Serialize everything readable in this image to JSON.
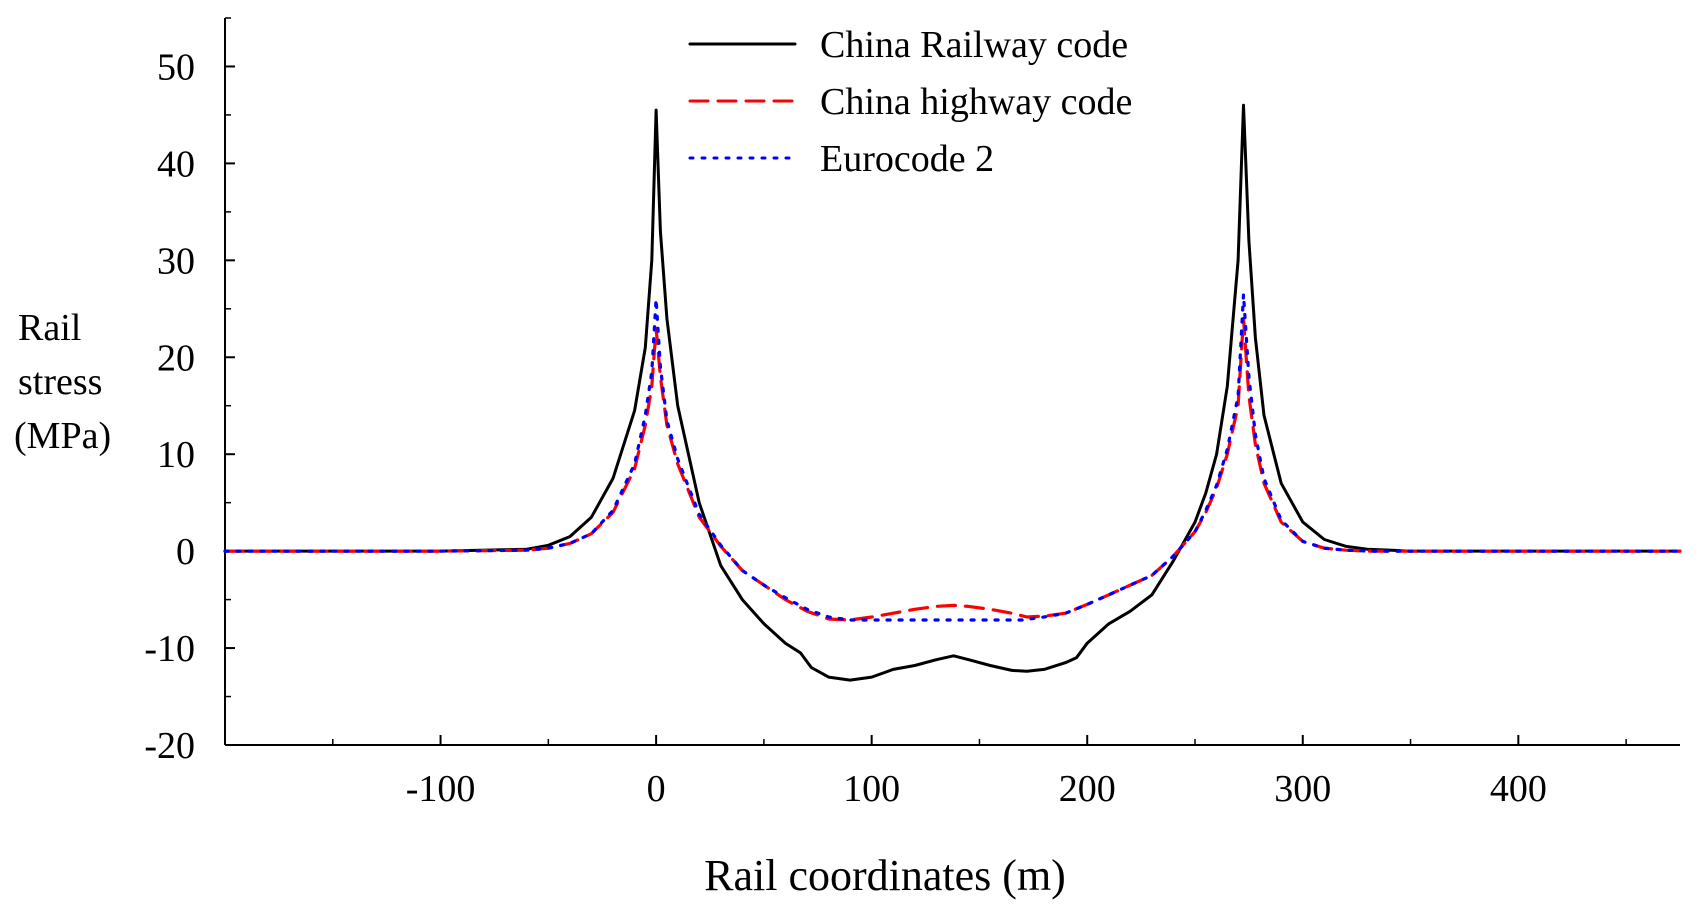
{
  "chart_data": {
    "type": "line",
    "title": "",
    "xlabel": "Rail coordinates (m)",
    "ylabel": [
      "Rail",
      "stress",
      "(MPa)"
    ],
    "xlim": [
      -200,
      475
    ],
    "ylim": [
      -20,
      55
    ],
    "x_ticks": [
      -100,
      0,
      100,
      200,
      300,
      400
    ],
    "x_tick_labels": [
      "-100",
      "0",
      "100",
      "200",
      "300",
      "400"
    ],
    "y_ticks": [
      -20,
      -10,
      0,
      10,
      20,
      30,
      40,
      50
    ],
    "y_tick_labels": [
      "-20",
      "-10",
      "0",
      "10",
      "20",
      "30",
      "40",
      "50"
    ],
    "legend_position": "top-center",
    "series": [
      {
        "name": "China Railway code",
        "color": "#000000",
        "style": "solid",
        "x": [
          -200,
          -100,
          -60,
          -50,
          -40,
          -30,
          -20,
          -10,
          -5,
          -2,
          0,
          2,
          5,
          10,
          20,
          30,
          40,
          50,
          60,
          67,
          72,
          80,
          90,
          100,
          110,
          120,
          130,
          138,
          145,
          155,
          165,
          172,
          180,
          190,
          195,
          200,
          205,
          210,
          220,
          230,
          240,
          250,
          255,
          260,
          265,
          270,
          272.5,
          275,
          278,
          282,
          290,
          300,
          310,
          320,
          330,
          350,
          400,
          475
        ],
        "y": [
          0,
          0,
          0.2,
          0.6,
          1.5,
          3.5,
          7.5,
          14.5,
          21,
          30,
          45.5,
          33,
          24,
          15,
          5,
          -1.5,
          -5,
          -7.5,
          -9.5,
          -10.5,
          -12,
          -13,
          -13.3,
          -13,
          -12.2,
          -11.8,
          -11.2,
          -10.8,
          -11.2,
          -11.8,
          -12.3,
          -12.4,
          -12.2,
          -11.5,
          -11,
          -9.5,
          -8.5,
          -7.5,
          -6.2,
          -4.5,
          -1,
          3,
          6,
          10,
          17,
          30,
          46,
          32,
          22,
          14,
          7,
          3,
          1.2,
          0.5,
          0.2,
          0,
          0,
          0
        ]
      },
      {
        "name": "China highway code",
        "color": "#ff0000",
        "style": "dashed",
        "x": [
          -200,
          -100,
          -60,
          -50,
          -40,
          -30,
          -20,
          -10,
          -5,
          -2,
          0,
          2,
          5,
          10,
          20,
          30,
          40,
          50,
          60,
          70,
          80,
          90,
          100,
          110,
          120,
          130,
          138,
          145,
          155,
          165,
          172,
          180,
          190,
          200,
          210,
          220,
          230,
          240,
          250,
          255,
          260,
          265,
          270,
          272.5,
          275,
          278,
          282,
          290,
          300,
          310,
          320,
          330,
          350,
          400,
          475
        ],
        "y": [
          0,
          0,
          0.1,
          0.3,
          0.8,
          1.8,
          4,
          8.5,
          13,
          17,
          23,
          18,
          13,
          9,
          3.5,
          0.5,
          -2,
          -3.5,
          -5,
          -6.2,
          -7,
          -7.1,
          -6.8,
          -6.4,
          -6,
          -5.7,
          -5.6,
          -5.7,
          -6,
          -6.4,
          -6.8,
          -6.7,
          -6.4,
          -5.5,
          -4.5,
          -3.5,
          -2.5,
          -0.5,
          2,
          4,
          6.5,
          10,
          15,
          24,
          16,
          11,
          7,
          3,
          1,
          0.3,
          0.1,
          0,
          0,
          0,
          0
        ]
      },
      {
        "name": "Eurocode 2",
        "color": "#0000ff",
        "style": "dotted",
        "x": [
          -200,
          -100,
          -60,
          -50,
          -40,
          -30,
          -20,
          -10,
          -5,
          -2,
          0,
          2,
          5,
          10,
          20,
          30,
          40,
          50,
          60,
          70,
          80,
          90,
          100,
          120,
          140,
          160,
          170,
          180,
          190,
          200,
          210,
          220,
          230,
          240,
          250,
          255,
          260,
          265,
          270,
          272.5,
          275,
          278,
          282,
          290,
          300,
          310,
          320,
          330,
          350,
          400,
          475
        ],
        "y": [
          0,
          0,
          0.1,
          0.3,
          0.8,
          1.8,
          4.2,
          9,
          14,
          18.5,
          26,
          19,
          13.5,
          9.5,
          3.8,
          0.6,
          -2,
          -3.5,
          -4.8,
          -6,
          -6.8,
          -7.1,
          -7.1,
          -7.1,
          -7.1,
          -7.1,
          -7.1,
          -6.8,
          -6.4,
          -5.5,
          -4.5,
          -3.5,
          -2.5,
          -0.5,
          2,
          4.2,
          6.8,
          10.5,
          16,
          26.5,
          18,
          12,
          7.5,
          3.2,
          1,
          0.3,
          0.1,
          0,
          0,
          0,
          0
        ]
      }
    ]
  }
}
